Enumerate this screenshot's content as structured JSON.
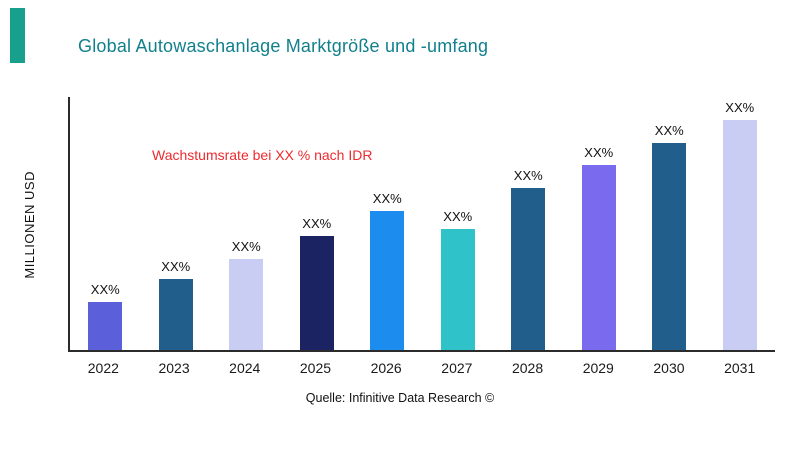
{
  "accent_color": "#18A08C",
  "title": {
    "text": "Global Autowaschanlage Marktgröße und -umfang",
    "color": "#12808C"
  },
  "annotation": {
    "text": "Wachstumsrate bei XX % nach IDR",
    "color": "#ED2B2F"
  },
  "source": "Quelle: Infinitive Data Research ©",
  "chart_data": {
    "type": "bar",
    "title": "Global Autowaschanlage Marktgröße und -umfang",
    "xlabel": "",
    "ylabel": "MILLIONEN USD",
    "categories": [
      "2022",
      "2023",
      "2024",
      "2025",
      "2026",
      "2027",
      "2028",
      "2029",
      "2030",
      "2031"
    ],
    "relative_heights_pct": [
      19,
      28,
      36,
      45,
      55,
      48,
      64,
      73,
      82,
      91
    ],
    "bar_labels": [
      "XX%",
      "XX%",
      "XX%",
      "XX%",
      "XX%",
      "XX%",
      "XX%",
      "XX%",
      "XX%",
      "XX%"
    ],
    "bar_colors": [
      "#5B5FD9",
      "#215E8C",
      "#C9CDF4",
      "#1B2363",
      "#1C8CEF",
      "#2FC2C9",
      "#215E8C",
      "#7A6AEE",
      "#215E8C",
      "#C9CDF4"
    ],
    "annotation": "Wachstumsrate bei XX % nach IDR",
    "legend": false,
    "grid": false,
    "y_axis_ticks": []
  }
}
